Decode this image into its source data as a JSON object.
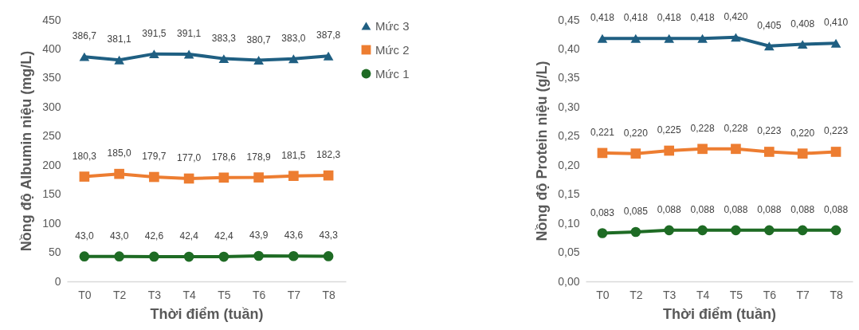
{
  "chart_data": [
    {
      "type": "line",
      "xlabel": "Thời điểm (tuần)",
      "ylabel": "Nồng độ Albumin niệu (mg/L)",
      "categories": [
        "T0",
        "T2",
        "T3",
        "T4",
        "T5",
        "T6",
        "T7",
        "T8"
      ],
      "ylim": [
        0,
        450
      ],
      "yticks": [
        0,
        50,
        100,
        150,
        200,
        250,
        300,
        350,
        400,
        450
      ],
      "grid": false,
      "legend": "right",
      "series": [
        {
          "name": "Mức 3",
          "color": "#1f5f82",
          "marker": "triangle",
          "values": [
            386.7,
            381.1,
            391.5,
            391.1,
            383.3,
            380.7,
            383.0,
            387.8
          ],
          "value_labels": [
            "386,7",
            "381,1",
            "391,5",
            "391,1",
            "383,3",
            "380,7",
            "383,0",
            "387,8"
          ]
        },
        {
          "name": "Mức 2",
          "color": "#ed7d31",
          "marker": "square",
          "values": [
            180.3,
            185.0,
            179.7,
            177.0,
            178.6,
            178.9,
            181.5,
            182.3
          ],
          "value_labels": [
            "180,3",
            "185,0",
            "179,7",
            "177,0",
            "178,6",
            "178,9",
            "181,5",
            "182,3"
          ]
        },
        {
          "name": "Mức 1",
          "color": "#1e6b24",
          "marker": "circle",
          "values": [
            43.0,
            43.0,
            42.6,
            42.4,
            42.4,
            43.9,
            43.6,
            43.3
          ],
          "value_labels": [
            "43,0",
            "43,0",
            "42,6",
            "42,4",
            "42,4",
            "43,9",
            "43,6",
            "43,3"
          ]
        }
      ]
    },
    {
      "type": "line",
      "xlabel": "Thời điểm (tuần)",
      "ylabel": "Nồng độ Protein niệu (g/L)",
      "categories": [
        "T0",
        "T2",
        "T3",
        "T4",
        "T5",
        "T6",
        "T7",
        "T8"
      ],
      "ylim": [
        0,
        0.45
      ],
      "yticks": [
        {
          "value": 0,
          "label": "0,00"
        },
        {
          "value": 0.05,
          "label": "0,05"
        },
        {
          "value": 0.1,
          "label": "0,10"
        },
        {
          "value": 0.15,
          "label": "0,15"
        },
        {
          "value": 0.2,
          "label": "0,20"
        },
        {
          "value": 0.25,
          "label": "0,25"
        },
        {
          "value": 0.3,
          "label": "0,30"
        },
        {
          "value": 0.35,
          "label": "0,35"
        },
        {
          "value": 0.4,
          "label": "0,40"
        },
        {
          "value": 0.45,
          "label": "0,45"
        }
      ],
      "grid": false,
      "series": [
        {
          "color": "#1f5f82",
          "marker": "triangle",
          "values": [
            0.418,
            0.418,
            0.418,
            0.418,
            0.42,
            0.405,
            0.408,
            0.41
          ],
          "value_labels": [
            "0,418",
            "0,418",
            "0,418",
            "0,418",
            "0,420",
            "0,405",
            "0,408",
            "0,410"
          ]
        },
        {
          "color": "#ed7d31",
          "marker": "square",
          "values": [
            0.221,
            0.22,
            0.225,
            0.228,
            0.228,
            0.223,
            0.22,
            0.223
          ],
          "value_labels": [
            "0,221",
            "0,220",
            "0,225",
            "0,228",
            "0,228",
            "0,223",
            "0,220",
            "0,223"
          ]
        },
        {
          "color": "#1e6b24",
          "marker": "circle",
          "values": [
            0.083,
            0.085,
            0.088,
            0.088,
            0.088,
            0.088,
            0.088,
            0.088
          ],
          "value_labels": [
            "0,083",
            "0,085",
            "0,088",
            "0,088",
            "0,088",
            "0,088",
            "0,088",
            "0,088"
          ]
        }
      ]
    }
  ]
}
